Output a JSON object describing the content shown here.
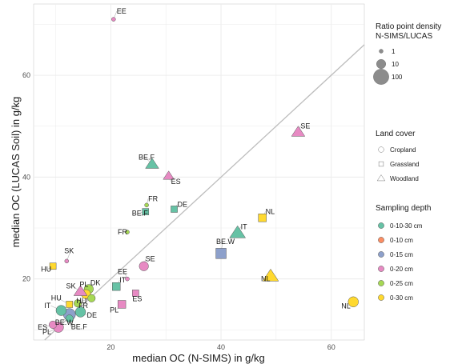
{
  "chart_data": {
    "type": "scatter",
    "title": "",
    "xlabel": "median OC (N-SIMS) in g/kg",
    "ylabel": "median OC (LUCAS Soil) in g/kg",
    "xlim": [
      6,
      66
    ],
    "ylim": [
      8,
      74
    ],
    "xticks": [
      20,
      40,
      60
    ],
    "yticks": [
      20,
      40,
      60
    ],
    "grid": true,
    "reference_line": "1:1",
    "legend_position": "right",
    "legend": {
      "size_title": "Ratio point density N-SIMS/LUCAS",
      "size_title_lines": [
        "Ratio point density",
        "N-SIMS/LUCAS"
      ],
      "sizes": [
        {
          "label": "1",
          "value": 1
        },
        {
          "label": "10",
          "value": 10
        },
        {
          "label": "100",
          "value": 100
        }
      ],
      "shape_title": "Land cover",
      "shapes": [
        {
          "label": "Cropland",
          "shape": "circle"
        },
        {
          "label": "Grassland",
          "shape": "square"
        },
        {
          "label": "Woodland",
          "shape": "triangle"
        }
      ],
      "color_title": "Sampling depth",
      "colors": [
        {
          "label": "0-10-30 cm",
          "color": "#66c2a5"
        },
        {
          "label": "0-10 cm",
          "color": "#fc8d62"
        },
        {
          "label": "0-15 cm",
          "color": "#8da0cb"
        },
        {
          "label": "0-20 cm",
          "color": "#e78ac3"
        },
        {
          "label": "0-25 cm",
          "color": "#a6d854"
        },
        {
          "label": "0-30 cm",
          "color": "#ffd92f"
        }
      ]
    },
    "points": [
      {
        "x": 20.5,
        "y": 71.0,
        "label": "EE",
        "cover": "Cropland",
        "depth": "0-20 cm",
        "ratio": 1
      },
      {
        "x": 54.0,
        "y": 48.8,
        "label": "SE",
        "cover": "Woodland",
        "depth": "0-20 cm",
        "ratio": 10
      },
      {
        "x": 27.5,
        "y": 42.5,
        "label": "BE.F",
        "cover": "Woodland",
        "depth": "0-10-30 cm",
        "ratio": 10
      },
      {
        "x": 30.5,
        "y": 40.2,
        "label": "ES",
        "cover": "Woodland",
        "depth": "0-20 cm",
        "ratio": 5
      },
      {
        "x": 31.5,
        "y": 33.7,
        "label": "DE",
        "cover": "Grassland",
        "depth": "0-10-30 cm",
        "ratio": 5
      },
      {
        "x": 26.5,
        "y": 34.5,
        "label": "FR",
        "cover": "Cropland",
        "depth": "0-25 cm",
        "ratio": 1
      },
      {
        "x": 26.3,
        "y": 33.2,
        "label": "BE.F",
        "cover": "Grassland",
        "depth": "0-10-30 cm",
        "ratio": 5
      },
      {
        "x": 23.0,
        "y": 29.2,
        "label": "FR",
        "cover": "Cropland",
        "depth": "0-25 cm",
        "ratio": 1
      },
      {
        "x": 47.5,
        "y": 32.0,
        "label": "NL",
        "cover": "Grassland",
        "depth": "0-30 cm",
        "ratio": 10
      },
      {
        "x": 43.0,
        "y": 29.0,
        "label": "IT",
        "cover": "Woodland",
        "depth": "0-10-30 cm",
        "ratio": 20
      },
      {
        "x": 40.0,
        "y": 25.0,
        "label": "BE.W",
        "cover": "Grassland",
        "depth": "0-15 cm",
        "ratio": 30
      },
      {
        "x": 49.0,
        "y": 20.5,
        "label": "NL",
        "cover": "Woodland",
        "depth": "0-30 cm",
        "ratio": 20
      },
      {
        "x": 64.0,
        "y": 15.5,
        "label": "NL",
        "cover": "Cropland",
        "depth": "0-30 cm",
        "ratio": 15
      },
      {
        "x": 12.0,
        "y": 23.5,
        "label": "SK",
        "cover": "Cropland",
        "depth": "0-20 cm",
        "ratio": 1
      },
      {
        "x": 9.5,
        "y": 22.5,
        "label": "HU",
        "cover": "Grassland",
        "depth": "0-30 cm",
        "ratio": 5
      },
      {
        "x": 23.0,
        "y": 20.0,
        "label": "EE",
        "cover": "Cropland",
        "depth": "0-20 cm",
        "ratio": 1
      },
      {
        "x": 26.0,
        "y": 22.5,
        "label": "SE",
        "cover": "Cropland",
        "depth": "0-20 cm",
        "ratio": 10
      },
      {
        "x": 21.0,
        "y": 18.5,
        "label": "IT",
        "cover": "Grassland",
        "depth": "0-10-30 cm",
        "ratio": 10
      },
      {
        "x": 24.5,
        "y": 17.2,
        "label": "ES",
        "cover": "Grassland",
        "depth": "0-20 cm",
        "ratio": 5
      },
      {
        "x": 22.0,
        "y": 15.0,
        "label": "PL",
        "cover": "Grassland",
        "depth": "0-20 cm",
        "ratio": 10
      },
      {
        "x": 16.0,
        "y": 18.0,
        "label": "DK",
        "cover": "Cropland",
        "depth": "0-25 cm",
        "ratio": 10
      },
      {
        "x": 15.5,
        "y": 17.0,
        "label": "PL",
        "cover": "Cropland",
        "depth": "0-30 cm",
        "ratio": 10
      },
      {
        "x": 14.5,
        "y": 17.5,
        "label": "SK",
        "cover": "Woodland",
        "depth": "0-20 cm",
        "ratio": 10
      },
      {
        "x": 16.5,
        "y": 16.2,
        "label": "HU",
        "cover": "Cropland",
        "depth": "0-25 cm",
        "ratio": 5
      },
      {
        "x": 14.0,
        "y": 15.2,
        "label": "FR",
        "cover": "Cropland",
        "depth": "0-25 cm",
        "ratio": 5
      },
      {
        "x": 12.5,
        "y": 15.0,
        "label": "HU",
        "cover": "Grassland",
        "depth": "0-30 cm",
        "ratio": 5
      },
      {
        "x": 11.0,
        "y": 13.8,
        "label": "IT",
        "cover": "Cropland",
        "depth": "0-10-30 cm",
        "ratio": 15
      },
      {
        "x": 14.5,
        "y": 13.5,
        "label": "DE",
        "cover": "Cropland",
        "depth": "0-10-30 cm",
        "ratio": 15
      },
      {
        "x": 12.5,
        "y": 13.0,
        "label": "BE.W",
        "cover": "Cropland",
        "depth": "0-15 cm",
        "ratio": 30
      },
      {
        "x": 12.5,
        "y": 12.2,
        "label": "BE.F",
        "cover": "Cropland",
        "depth": "0-10-30 cm",
        "ratio": 5
      },
      {
        "x": 9.5,
        "y": 11.0,
        "label": "ES",
        "cover": "Cropland",
        "depth": "0-20 cm",
        "ratio": 5
      },
      {
        "x": 10.5,
        "y": 10.5,
        "label": "PL",
        "cover": "Cropland",
        "depth": "0-20 cm",
        "ratio": 15
      }
    ]
  }
}
